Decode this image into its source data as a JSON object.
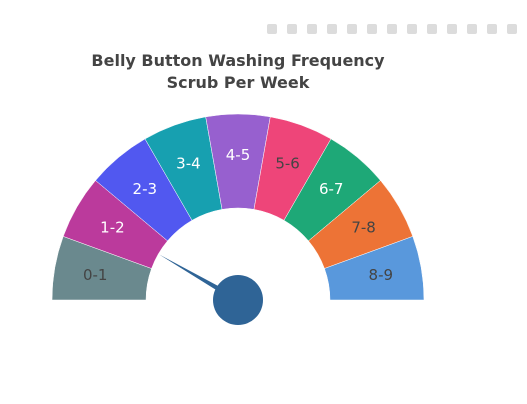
{
  "chart_data": {
    "type": "gauge",
    "title_lines": [
      "Belly Button Washing Frequency",
      "Scrub Per Week"
    ],
    "range": [
      0,
      9
    ],
    "value": 1.5,
    "steps": [
      {
        "label": "0-1",
        "range": [
          0,
          1
        ],
        "color": "#6a898e",
        "label_color": "#444444"
      },
      {
        "label": "1-2",
        "range": [
          1,
          2
        ],
        "color": "#bb3a9c",
        "label_color": "#ffffff"
      },
      {
        "label": "2-3",
        "range": [
          2,
          3
        ],
        "color": "#5158f0",
        "label_color": "#ffffff"
      },
      {
        "label": "3-4",
        "range": [
          3,
          4
        ],
        "color": "#17a0b0",
        "label_color": "#ffffff"
      },
      {
        "label": "4-5",
        "range": [
          4,
          5
        ],
        "color": "#9760cf",
        "label_color": "#ffffff"
      },
      {
        "label": "5-6",
        "range": [
          5,
          6
        ],
        "color": "#ee4579",
        "label_color": "#444444"
      },
      {
        "label": "6-7",
        "range": [
          6,
          7
        ],
        "color": "#1ea877",
        "label_color": "#ffffff"
      },
      {
        "label": "7-8",
        "range": [
          7,
          8
        ],
        "color": "#ed7336",
        "label_color": "#444444"
      },
      {
        "label": "8-9",
        "range": [
          8,
          9
        ],
        "color": "#5998dc",
        "label_color": "#444444"
      }
    ],
    "needle_color": "#2f6496"
  },
  "modebar": {
    "icons": [
      "camera-icon",
      "zoom-icon",
      "pan-icon",
      "select-icon",
      "lasso-icon",
      "zoom-in-icon",
      "zoom-out-icon",
      "autoscale-icon",
      "reset-icon",
      "spike-icon",
      "hover-closest-icon",
      "hover-compare-icon",
      "plotly-logo-icon"
    ]
  }
}
